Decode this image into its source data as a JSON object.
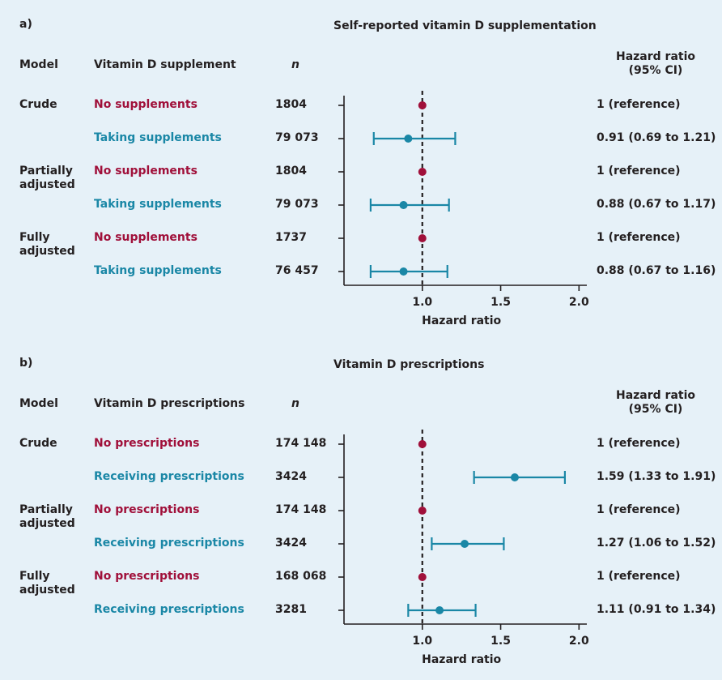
{
  "chart_data": [
    {
      "type": "forest",
      "panel": "a)",
      "title": "Self-reported vitamin D supplementation",
      "col_model": "Model",
      "col_group": "Vitamin D supplement",
      "col_n": "n",
      "col_hr_line1": "Hazard ratio",
      "col_hr_line2": "(95% CI)",
      "xlabel": "Hazard ratio",
      "xlim": [
        0.5,
        2.05
      ],
      "xticks": [
        "1.0",
        "1.5",
        "2.0"
      ],
      "xtick_values": [
        1.0,
        1.5,
        2.0
      ],
      "reference_line": 1.0,
      "rows": [
        {
          "model_line1": "Crude",
          "model_line2": "",
          "group": "No supplements",
          "kind": "ref",
          "n": "1804",
          "hr": 1.0,
          "lo": 1.0,
          "hi": 1.0,
          "label": "1 (reference)"
        },
        {
          "model_line1": "",
          "model_line2": "",
          "group": "Taking supplements",
          "kind": "trt",
          "n": "79 073",
          "hr": 0.91,
          "lo": 0.69,
          "hi": 1.21,
          "label": "0.91 (0.69 to 1.21)"
        },
        {
          "model_line1": "Partially",
          "model_line2": "adjusted",
          "group": "No supplements",
          "kind": "ref",
          "n": "1804",
          "hr": 1.0,
          "lo": 1.0,
          "hi": 1.0,
          "label": "1 (reference)"
        },
        {
          "model_line1": "",
          "model_line2": "",
          "group": "Taking supplements",
          "kind": "trt",
          "n": "79 073",
          "hr": 0.88,
          "lo": 0.67,
          "hi": 1.17,
          "label": "0.88 (0.67 to 1.17)"
        },
        {
          "model_line1": "Fully",
          "model_line2": "adjusted",
          "group": "No supplements",
          "kind": "ref",
          "n": "1737",
          "hr": 1.0,
          "lo": 1.0,
          "hi": 1.0,
          "label": "1 (reference)"
        },
        {
          "model_line1": "",
          "model_line2": "",
          "group": "Taking supplements",
          "kind": "trt",
          "n": "76 457",
          "hr": 0.88,
          "lo": 0.67,
          "hi": 1.16,
          "label": "0.88 (0.67 to 1.16)"
        }
      ]
    },
    {
      "type": "forest",
      "panel": "b)",
      "title": "Vitamin D prescriptions",
      "col_model": "Model",
      "col_group": "Vitamin D prescriptions",
      "col_n": "n",
      "col_hr_line1": "Hazard ratio",
      "col_hr_line2": "(95% CI)",
      "xlabel": "Hazard ratio",
      "xlim": [
        0.5,
        2.05
      ],
      "xticks": [
        "1.0",
        "1.5",
        "2.0"
      ],
      "xtick_values": [
        1.0,
        1.5,
        2.0
      ],
      "reference_line": 1.0,
      "rows": [
        {
          "model_line1": "Crude",
          "model_line2": "",
          "group": "No prescriptions",
          "kind": "ref",
          "n": "174 148",
          "hr": 1.0,
          "lo": 1.0,
          "hi": 1.0,
          "label": "1 (reference)"
        },
        {
          "model_line1": "",
          "model_line2": "",
          "group": "Receiving prescriptions",
          "kind": "trt",
          "n": "3424",
          "hr": 1.59,
          "lo": 1.33,
          "hi": 1.91,
          "label": "1.59 (1.33 to 1.91)"
        },
        {
          "model_line1": "Partially",
          "model_line2": "adjusted",
          "group": "No prescriptions",
          "kind": "ref",
          "n": "174 148",
          "hr": 1.0,
          "lo": 1.0,
          "hi": 1.0,
          "label": "1 (reference)"
        },
        {
          "model_line1": "",
          "model_line2": "",
          "group": "Receiving prescriptions",
          "kind": "trt",
          "n": "3424",
          "hr": 1.27,
          "lo": 1.06,
          "hi": 1.52,
          "label": "1.27 (1.06 to 1.52)"
        },
        {
          "model_line1": "Fully",
          "model_line2": "adjusted",
          "group": "No prescriptions",
          "kind": "ref",
          "n": "168 068",
          "hr": 1.0,
          "lo": 1.0,
          "hi": 1.0,
          "label": "1 (reference)"
        },
        {
          "model_line1": "",
          "model_line2": "",
          "group": "Receiving prescriptions",
          "kind": "trt",
          "n": "3281",
          "hr": 1.11,
          "lo": 0.91,
          "hi": 1.34,
          "label": "1.11 (0.91 to 1.34)"
        }
      ]
    }
  ],
  "colors": {
    "reference": "#a0103a",
    "treatment": "#1a87a6",
    "axis": "#231f20",
    "background": "#e6f1f8"
  }
}
